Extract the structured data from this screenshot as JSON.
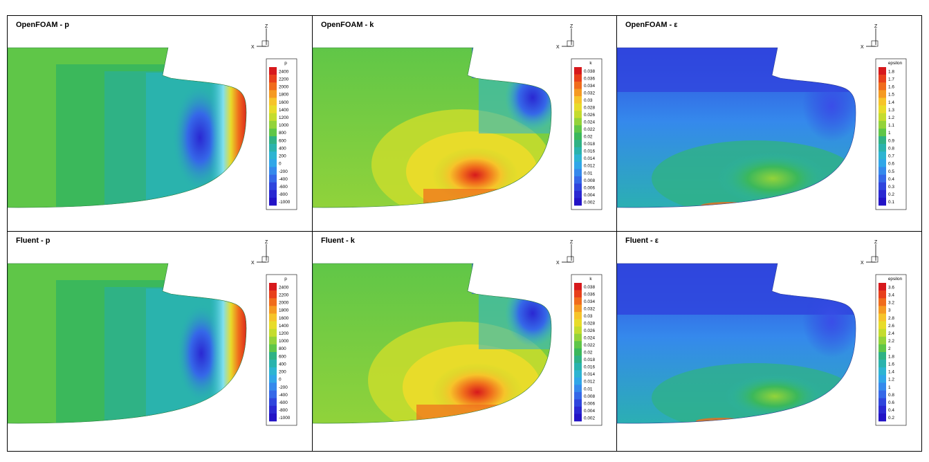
{
  "panels": [
    {
      "title": "OpenFOAM - p",
      "field": "p",
      "legend_title": "p",
      "legend_values": [
        "2400",
        "2200",
        "2000",
        "1800",
        "1600",
        "1400",
        "1200",
        "1000",
        "800",
        "600",
        "400",
        "200",
        "0",
        "-200",
        "-400",
        "-600",
        "-800",
        "-1000"
      ]
    },
    {
      "title": "OpenFOAM - k",
      "field": "k",
      "legend_title": "k",
      "legend_values": [
        "0.038",
        "0.036",
        "0.034",
        "0.032",
        "0.03",
        "0.028",
        "0.026",
        "0.024",
        "0.022",
        "0.02",
        "0.018",
        "0.016",
        "0.014",
        "0.012",
        "0.01",
        "0.008",
        "0.006",
        "0.004",
        "0.002"
      ]
    },
    {
      "title": "OpenFOAM - ε",
      "field": "epsilon",
      "legend_title": "epsilon",
      "legend_values": [
        "1.8",
        "1.7",
        "1.6",
        "1.5",
        "1.4",
        "1.3",
        "1.2",
        "1.1",
        "1",
        "0.9",
        "0.8",
        "0.7",
        "0.6",
        "0.5",
        "0.4",
        "0.3",
        "0.2",
        "0.1"
      ]
    },
    {
      "title": "Fluent - p",
      "field": "p",
      "legend_title": "p",
      "legend_values": [
        "2400",
        "2200",
        "2000",
        "1800",
        "1600",
        "1400",
        "1200",
        "1000",
        "800",
        "600",
        "400",
        "200",
        "0",
        "-200",
        "-400",
        "-600",
        "-800",
        "-1000"
      ]
    },
    {
      "title": "Fluent - k",
      "field": "k",
      "legend_title": "k",
      "legend_values": [
        "0.038",
        "0.036",
        "0.034",
        "0.032",
        "0.03",
        "0.028",
        "0.026",
        "0.024",
        "0.022",
        "0.02",
        "0.018",
        "0.016",
        "0.014",
        "0.012",
        "0.01",
        "0.008",
        "0.006",
        "0.004",
        "0.002"
      ]
    },
    {
      "title": "Fluent - ε",
      "field": "epsilon",
      "legend_title": "epsilon",
      "legend_values": [
        "3.6",
        "3.4",
        "3.2",
        "3",
        "2.8",
        "2.6",
        "2.4",
        "2.2",
        "2",
        "1.8",
        "1.6",
        "1.4",
        "1.2",
        "1",
        "0.8",
        "0.6",
        "0.4",
        "0.2"
      ]
    }
  ],
  "axis_labels": {
    "vertical": "Z",
    "horizontal": "X"
  },
  "colors": {
    "rainbow": [
      "#d7191c",
      "#e8401b",
      "#f06c1c",
      "#f59a22",
      "#f6c42a",
      "#e8dc2a",
      "#c4dc2e",
      "#93d33a",
      "#5fc648",
      "#3bb85b",
      "#2fb285",
      "#2ab3ad",
      "#2db4d2",
      "#30a6e8",
      "#3589ec",
      "#3568e8",
      "#2f45dd",
      "#2a28d2",
      "#2313c6"
    ]
  }
}
